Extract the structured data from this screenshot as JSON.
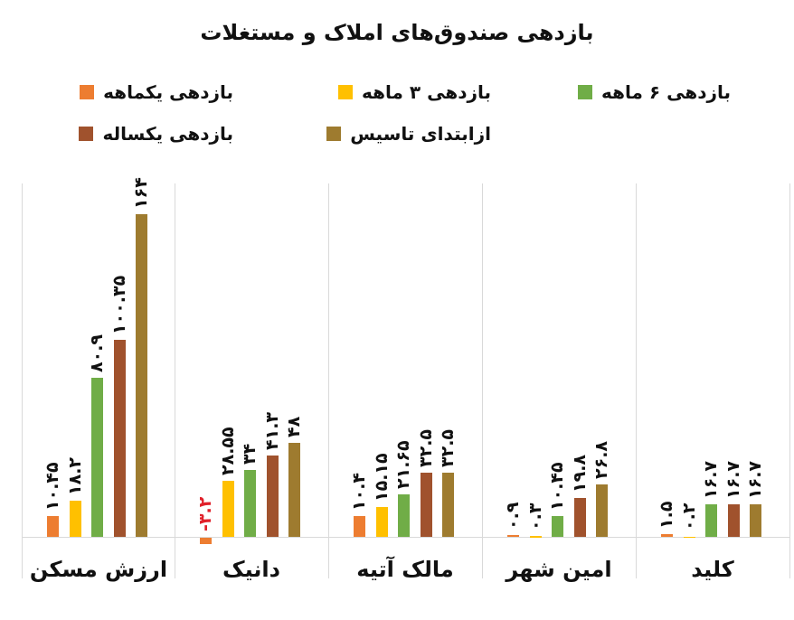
{
  "title": "بازدهی صندوق‌های املاک و مستغلات",
  "legend": [
    {
      "label": "بازدهی ۶ ماهه",
      "color": "#70ad47"
    },
    {
      "label": "بازدهی ۳ ماهه",
      "color": "#ffc000"
    },
    {
      "label": "بازدهی یکماهه",
      "color": "#ed7d31"
    },
    {
      "label": "ازابتدای تاسیس",
      "color": "#9e7b2f"
    },
    {
      "label": "بازدهی یکساله",
      "color": "#a0522d"
    }
  ],
  "chart_data": {
    "type": "bar",
    "title": "بازدهی صندوق‌های املاک و مستغلات",
    "xlabel": "",
    "ylabel": "",
    "grid": false,
    "legend_position": "top",
    "categories": [
      "ارزش مسکن",
      "دانیک",
      "مالک آتیه",
      "امین شهر",
      "کلید"
    ],
    "series": [
      {
        "name": "بازدهی یکماهه",
        "color": "#ed7d31",
        "values": [
          10.45,
          -3.2,
          10.4,
          0.9,
          1.5
        ],
        "labels": [
          "۱۰.۴۵",
          "-۳.۲",
          "۱۰.۴",
          "۰.۹",
          "۱.۵"
        ]
      },
      {
        "name": "بازدهی ۳ ماهه",
        "color": "#ffc000",
        "values": [
          18.2,
          28.55,
          15.15,
          0.3,
          0.2
        ],
        "labels": [
          "۱۸.۲",
          "۲۸.۵۵",
          "۱۵.۱۵",
          "۰.۳",
          "۰.۲"
        ]
      },
      {
        "name": "بازدهی ۶ ماهه",
        "color": "#70ad47",
        "values": [
          80.9,
          34,
          21.65,
          10.45,
          16.7
        ],
        "labels": [
          "۸۰.۹",
          "۳۴",
          "۲۱.۶۵",
          "۱۰.۴۵",
          "۱۶.۷"
        ]
      },
      {
        "name": "بازدهی یکساله",
        "color": "#a0522d",
        "values": [
          100.35,
          41.3,
          32.5,
          19.8,
          16.7
        ],
        "labels": [
          "۱۰۰.۳۵",
          "۴۱.۳",
          "۳۲.۵",
          "۱۹.۸",
          "۱۶.۷"
        ]
      },
      {
        "name": "ازابتدای تاسیس",
        "color": "#9e7b2f",
        "values": [
          164,
          48,
          32.5,
          26.8,
          16.7
        ],
        "labels": [
          "۱۶۴",
          "۴۸",
          "۳۲.۵",
          "۲۶.۸",
          "۱۶.۷"
        ]
      }
    ]
  }
}
